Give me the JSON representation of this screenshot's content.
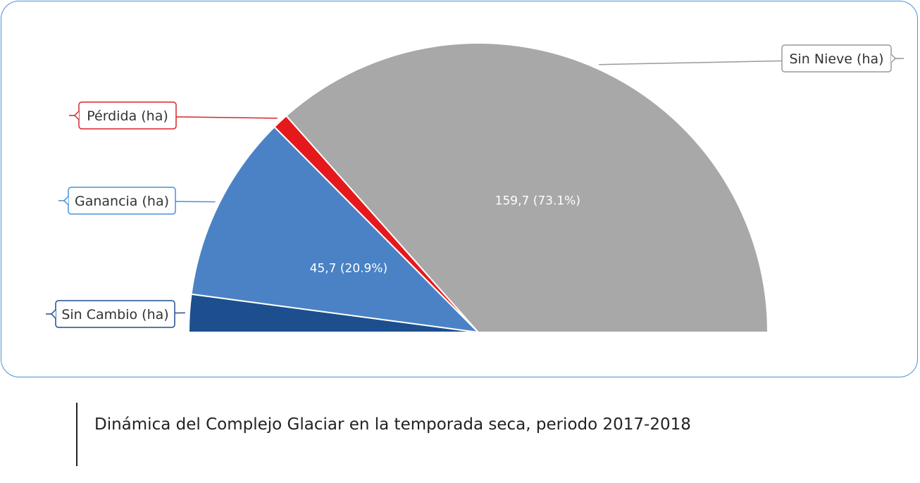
{
  "chart_data": {
    "type": "pie",
    "variant": "semicircle",
    "slices": [
      {
        "name": "Sin Cambio (ha)",
        "value": 9.2,
        "label": "",
        "color": "#1d4f8e",
        "legend_color": "#1d4f8e"
      },
      {
        "name": "Ganancia (ha)",
        "value": 45.7,
        "label": "45,7 (20.9%)",
        "color": "#4a82c5",
        "legend_color": "#4a90d9"
      },
      {
        "name": "Pérdida (ha)",
        "value": 3.9,
        "label": "",
        "color": "#e5191c",
        "legend_color": "#d9252b"
      },
      {
        "name": "Sin Nieve (ha)",
        "value": 159.7,
        "label": "159,7 (73.1%)",
        "color": "#a8a8a9",
        "legend_color": "#9a9a9a"
      }
    ]
  },
  "caption": "Dinámica del Complejo Glaciar en la temporada seca, periodo 2017-2018"
}
